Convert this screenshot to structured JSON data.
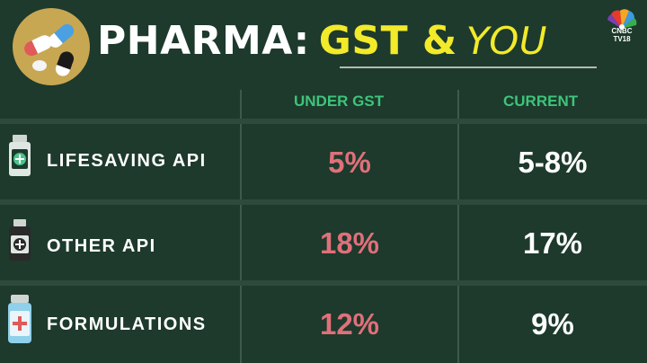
{
  "header": {
    "title_part1": "PHARMA:",
    "title_part2": "GST &",
    "title_part3": "YOU",
    "logo_line1": "CNBC",
    "logo_line2": "TV18"
  },
  "columns": {
    "under_gst": "UNDER GST",
    "current": "CURRENT"
  },
  "rows": [
    {
      "label": "LIFESAVING API",
      "under_gst": "5%",
      "current": "5-8%",
      "icon": "green-bottle-icon"
    },
    {
      "label": "OTHER API",
      "under_gst": "18%",
      "current": "17%",
      "icon": "dark-bottle-icon"
    },
    {
      "label": "FORMULATIONS",
      "under_gst": "12%",
      "current": "9%",
      "icon": "medicine-bottle-icon"
    }
  ],
  "colors": {
    "background": "#1d3a2c",
    "gold_circle": "#c8a752",
    "accent_yellow": "#f2ea2a",
    "header_green": "#3ec47a",
    "gst_value": "#e0707a"
  }
}
